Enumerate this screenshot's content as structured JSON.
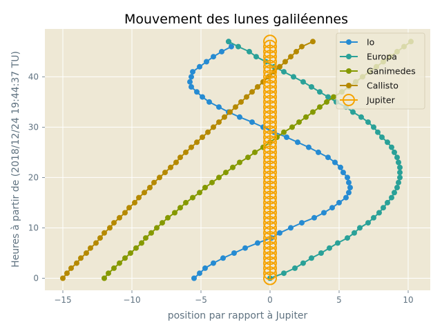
{
  "chart_data": {
    "type": "line",
    "title": "Mouvement des lunes galiléennes",
    "xlabel": "position par rapport à Jupiter",
    "ylabel": "Heures à partir de (2018/12/24 19:44:37 TU)",
    "xlim": [
      -16.3,
      11.6
    ],
    "ylim": [
      -2.4,
      49.5
    ],
    "x_ticks": [
      -15,
      -10,
      -5,
      0,
      5,
      10
    ],
    "x_tick_labels": [
      "−15",
      "−10",
      "−5",
      "0",
      "5",
      "10"
    ],
    "y_ticks": [
      0,
      10,
      20,
      30,
      40
    ],
    "y_tick_labels": [
      "0",
      "10",
      "20",
      "30",
      "40"
    ],
    "grid": true,
    "legend_position": "top-right",
    "hours": [
      0,
      1,
      2,
      3,
      4,
      5,
      6,
      7,
      8,
      9,
      10,
      11,
      12,
      13,
      14,
      15,
      16,
      17,
      18,
      19,
      20,
      21,
      22,
      23,
      24,
      25,
      26,
      27,
      28,
      29,
      30,
      31,
      32,
      33,
      34,
      35,
      36,
      37,
      38,
      39,
      40,
      41,
      42,
      43,
      44,
      45,
      46,
      47
    ],
    "series": [
      {
        "name": "Io",
        "color": "#268bd2",
        "marker": "dot",
        "x": [
          -5.5,
          -5.1,
          -4.7,
          -4.1,
          -3.4,
          -2.6,
          -1.8,
          -0.9,
          0.1,
          0.7,
          1.5,
          2.3,
          3.2,
          3.9,
          4.5,
          5.0,
          5.5,
          5.7,
          5.8,
          5.7,
          5.6,
          5.3,
          5.1,
          4.7,
          4.2,
          3.5,
          2.8,
          2.0,
          1.2,
          0.3,
          -0.5,
          -1.3,
          -2.2,
          -3.0,
          -3.7,
          -4.4,
          -4.9,
          -5.3,
          -5.7,
          -5.8,
          -5.7,
          -5.6,
          -5.1,
          -4.6,
          -4.1,
          -3.5,
          -2.8,
          -3.0
        ]
      },
      {
        "name": "Europa",
        "color": "#2aa198",
        "marker": "dot",
        "x": [
          0.0,
          1.0,
          1.8,
          2.4,
          3.0,
          3.7,
          4.3,
          4.9,
          5.6,
          6.1,
          6.5,
          7.1,
          7.5,
          7.9,
          8.2,
          8.5,
          8.8,
          9.0,
          9.2,
          9.3,
          9.4,
          9.4,
          9.4,
          9.3,
          9.2,
          9.0,
          8.8,
          8.5,
          8.1,
          7.8,
          7.5,
          7.1,
          6.6,
          6.0,
          5.5,
          4.8,
          4.2,
          3.6,
          3.0,
          2.4,
          1.7,
          1.0,
          0.3,
          -0.3,
          -1.0,
          -1.5,
          -2.3,
          -3.0
        ]
      },
      {
        "name": "Ganimedes",
        "color": "#859900",
        "marker": "dot",
        "x": [
          -12.0,
          -11.7,
          -11.3,
          -10.9,
          -10.5,
          -10.1,
          -9.7,
          -9.3,
          -9.0,
          -8.6,
          -8.2,
          -7.8,
          -7.4,
          -6.9,
          -6.5,
          -6.1,
          -5.6,
          -5.1,
          -4.7,
          -4.2,
          -3.7,
          -3.2,
          -2.7,
          -2.2,
          -1.6,
          -1.1,
          -0.5,
          0.0,
          0.5,
          1.0,
          1.6,
          2.1,
          2.6,
          3.1,
          3.6,
          4.1,
          4.6,
          5.2,
          5.7,
          6.2,
          6.7,
          7.2,
          7.7,
          8.2,
          8.7,
          9.2,
          9.7,
          10.2
        ]
      },
      {
        "name": "Callisto",
        "color": "#b58900",
        "marker": "dot",
        "x": [
          -15.0,
          -14.7,
          -14.4,
          -14.0,
          -13.7,
          -13.3,
          -13.0,
          -12.6,
          -12.3,
          -12.0,
          -11.6,
          -11.3,
          -10.9,
          -10.5,
          -10.2,
          -9.8,
          -9.5,
          -9.1,
          -8.7,
          -8.4,
          -8.0,
          -7.6,
          -7.2,
          -6.8,
          -6.5,
          -6.1,
          -5.7,
          -5.3,
          -4.9,
          -4.5,
          -4.1,
          -3.7,
          -3.3,
          -2.9,
          -2.5,
          -2.1,
          -1.7,
          -1.3,
          -0.9,
          -0.5,
          -0.1,
          0.3,
          0.7,
          1.1,
          1.5,
          1.9,
          2.3,
          3.1
        ]
      },
      {
        "name": "Jupiter",
        "color": "#f5a300",
        "marker": "circle-large",
        "x": [
          0,
          0,
          0,
          0,
          0,
          0,
          0,
          0,
          0,
          0,
          0,
          0,
          0,
          0,
          0,
          0,
          0,
          0,
          0,
          0,
          0,
          0,
          0,
          0,
          0,
          0,
          0,
          0,
          0,
          0,
          0,
          0,
          0,
          0,
          0,
          0,
          0,
          0,
          0,
          0,
          0,
          0,
          0,
          0,
          0,
          0,
          0,
          0
        ]
      }
    ]
  }
}
